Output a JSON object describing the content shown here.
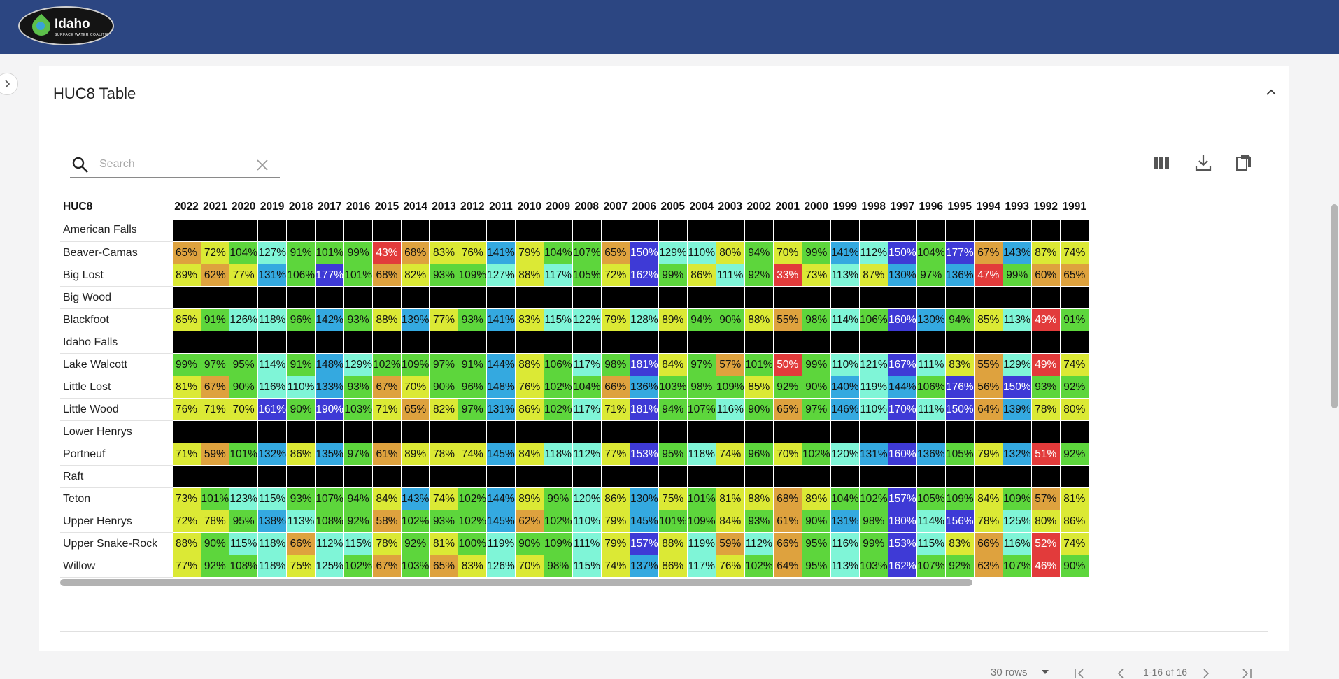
{
  "header": {
    "logo_name": "Idaho",
    "logo_tagline": "SURFACE WATER COALITION"
  },
  "card": {
    "title": "HUC8 Table"
  },
  "search": {
    "placeholder": "Search"
  },
  "toolbar": {
    "columns_icon": "view-column-icon",
    "download_icon": "download-icon",
    "copy_icon": "copy-icon"
  },
  "table": {
    "row_header": "HUC8",
    "years": [
      "2022",
      "2021",
      "2020",
      "2019",
      "2018",
      "2017",
      "2016",
      "2015",
      "2014",
      "2013",
      "2012",
      "2011",
      "2010",
      "2009",
      "2008",
      "2007",
      "2006",
      "2005",
      "2004",
      "2003",
      "2002",
      "2001",
      "2000",
      "1999",
      "1998",
      "1997",
      "1996",
      "1995",
      "1994",
      "1993",
      "1992",
      "1991"
    ],
    "rows": [
      {
        "name": "American Falls",
        "values": []
      },
      {
        "name": "Beaver-Camas",
        "values": [
          "65%",
          "72%",
          "104%",
          "127%",
          "91%",
          "101%",
          "99%",
          "43%",
          "68%",
          "83%",
          "76%",
          "141%",
          "79%",
          "104%",
          "107%",
          "65%",
          "150%",
          "129%",
          "110%",
          "80%",
          "94%",
          "70%",
          "99%",
          "141%",
          "112%",
          "150%",
          "104%",
          "177%",
          "67%",
          "143%",
          "87%",
          "74%"
        ]
      },
      {
        "name": "Big Lost",
        "values": [
          "89%",
          "62%",
          "77%",
          "131%",
          "106%",
          "177%",
          "101%",
          "68%",
          "82%",
          "93%",
          "109%",
          "127%",
          "88%",
          "117%",
          "105%",
          "72%",
          "162%",
          "99%",
          "86%",
          "111%",
          "92%",
          "33%",
          "73%",
          "113%",
          "87%",
          "130%",
          "97%",
          "136%",
          "47%",
          "99%",
          "60%",
          "65%"
        ]
      },
      {
        "name": "Big Wood",
        "values": []
      },
      {
        "name": "Blackfoot",
        "values": [
          "85%",
          "91%",
          "126%",
          "118%",
          "96%",
          "142%",
          "93%",
          "88%",
          "139%",
          "77%",
          "93%",
          "141%",
          "83%",
          "115%",
          "122%",
          "79%",
          "128%",
          "89%",
          "94%",
          "90%",
          "88%",
          "55%",
          "98%",
          "114%",
          "106%",
          "160%",
          "130%",
          "94%",
          "85%",
          "113%",
          "49%",
          "91%"
        ]
      },
      {
        "name": "Idaho Falls",
        "values": []
      },
      {
        "name": "Lake Walcott",
        "values": [
          "99%",
          "97%",
          "95%",
          "114%",
          "91%",
          "148%",
          "129%",
          "102%",
          "109%",
          "97%",
          "91%",
          "144%",
          "88%",
          "106%",
          "117%",
          "98%",
          "181%",
          "84%",
          "97%",
          "57%",
          "101%",
          "50%",
          "99%",
          "110%",
          "121%",
          "167%",
          "111%",
          "83%",
          "55%",
          "129%",
          "49%",
          "74%"
        ]
      },
      {
        "name": "Little Lost",
        "values": [
          "81%",
          "67%",
          "90%",
          "116%",
          "110%",
          "133%",
          "93%",
          "67%",
          "70%",
          "90%",
          "96%",
          "148%",
          "76%",
          "102%",
          "104%",
          "66%",
          "136%",
          "103%",
          "98%",
          "109%",
          "85%",
          "92%",
          "90%",
          "140%",
          "119%",
          "144%",
          "106%",
          "176%",
          "56%",
          "150%",
          "93%",
          "92%"
        ]
      },
      {
        "name": "Little Wood",
        "values": [
          "76%",
          "71%",
          "70%",
          "161%",
          "90%",
          "190%",
          "103%",
          "71%",
          "65%",
          "82%",
          "97%",
          "131%",
          "86%",
          "102%",
          "117%",
          "71%",
          "181%",
          "94%",
          "107%",
          "116%",
          "90%",
          "65%",
          "97%",
          "146%",
          "110%",
          "170%",
          "111%",
          "150%",
          "64%",
          "139%",
          "78%",
          "80%"
        ]
      },
      {
        "name": "Lower Henrys",
        "values": []
      },
      {
        "name": "Portneuf",
        "values": [
          "71%",
          "59%",
          "101%",
          "132%",
          "86%",
          "135%",
          "97%",
          "61%",
          "89%",
          "78%",
          "74%",
          "145%",
          "84%",
          "118%",
          "112%",
          "77%",
          "153%",
          "95%",
          "118%",
          "74%",
          "96%",
          "70%",
          "102%",
          "120%",
          "131%",
          "160%",
          "136%",
          "105%",
          "79%",
          "132%",
          "51%",
          "92%"
        ]
      },
      {
        "name": "Raft",
        "values": []
      },
      {
        "name": "Teton",
        "values": [
          "73%",
          "101%",
          "123%",
          "115%",
          "93%",
          "107%",
          "94%",
          "84%",
          "143%",
          "74%",
          "102%",
          "144%",
          "89%",
          "99%",
          "120%",
          "86%",
          "130%",
          "75%",
          "101%",
          "81%",
          "88%",
          "68%",
          "89%",
          "104%",
          "102%",
          "157%",
          "105%",
          "109%",
          "84%",
          "109%",
          "57%",
          "81%"
        ]
      },
      {
        "name": "Upper Henrys",
        "values": [
          "72%",
          "78%",
          "95%",
          "138%",
          "113%",
          "108%",
          "92%",
          "58%",
          "102%",
          "93%",
          "102%",
          "145%",
          "62%",
          "102%",
          "110%",
          "79%",
          "145%",
          "101%",
          "109%",
          "84%",
          "93%",
          "61%",
          "90%",
          "131%",
          "98%",
          "180%",
          "114%",
          "156%",
          "78%",
          "125%",
          "80%",
          "86%"
        ]
      },
      {
        "name": "Upper Snake-Rock",
        "values": [
          "88%",
          "90%",
          "115%",
          "118%",
          "66%",
          "112%",
          "115%",
          "78%",
          "92%",
          "81%",
          "100%",
          "119%",
          "90%",
          "109%",
          "111%",
          "79%",
          "157%",
          "88%",
          "119%",
          "59%",
          "112%",
          "66%",
          "95%",
          "116%",
          "99%",
          "153%",
          "115%",
          "83%",
          "66%",
          "116%",
          "52%",
          "74%"
        ]
      },
      {
        "name": "Willow",
        "values": [
          "77%",
          "92%",
          "108%",
          "118%",
          "75%",
          "125%",
          "102%",
          "67%",
          "103%",
          "65%",
          "83%",
          "126%",
          "70%",
          "98%",
          "115%",
          "74%",
          "137%",
          "86%",
          "117%",
          "76%",
          "102%",
          "64%",
          "95%",
          "113%",
          "103%",
          "162%",
          "107%",
          "92%",
          "63%",
          "107%",
          "46%",
          "90%"
        ]
      }
    ]
  },
  "pagination": {
    "rows_label": "30 rows",
    "range": "1-16 of 16"
  },
  "colors": {
    "header_bg": "#2c4682",
    "no_data": "#000000",
    "very_low": "#e23b3b",
    "low": "#dea23e",
    "below": "#dbe935",
    "near": "#5dd63c",
    "above": "#7ff5d7",
    "high": "#34a9e0",
    "very_high": "#3e3ad6"
  }
}
